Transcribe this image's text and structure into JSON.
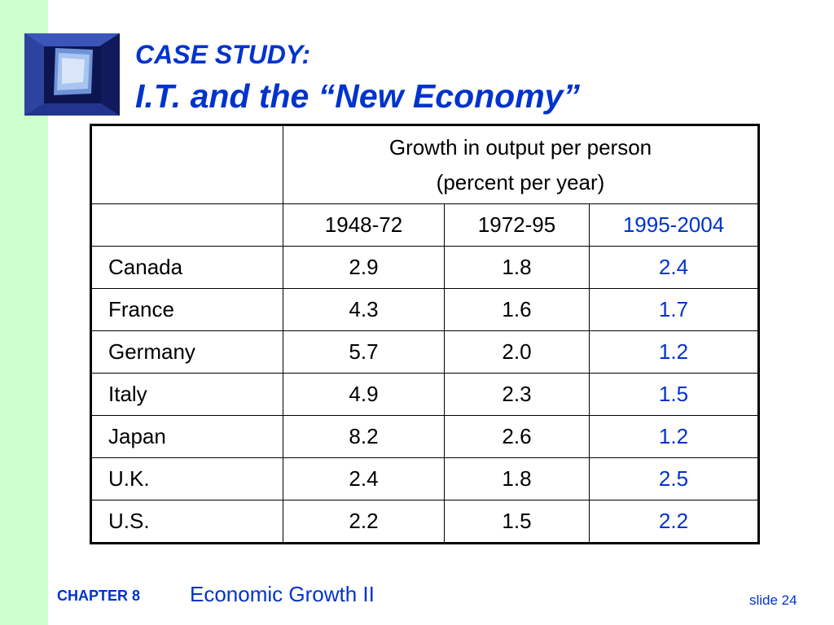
{
  "slide": {
    "title_line1": "CASE STUDY:",
    "title_line2": "I.T. and the “New Economy”",
    "logo_icon": "chapter-logo-icon"
  },
  "table": {
    "header_line1": "Growth in output per person",
    "header_line2": "(percent per year)",
    "periods": [
      "1948-72",
      "1972-95",
      "1995-2004"
    ],
    "rows": [
      {
        "country": "Canada",
        "values": [
          "2.9",
          "1.8",
          "2.4"
        ]
      },
      {
        "country": "France",
        "values": [
          "4.3",
          "1.6",
          "1.7"
        ]
      },
      {
        "country": "Germany",
        "values": [
          "5.7",
          "2.0",
          "1.2"
        ]
      },
      {
        "country": "Italy",
        "values": [
          "4.9",
          "2.3",
          "1.5"
        ]
      },
      {
        "country": "Japan",
        "values": [
          "8.2",
          "2.6",
          "1.2"
        ]
      },
      {
        "country": "U.K.",
        "values": [
          "2.4",
          "1.8",
          "2.5"
        ]
      },
      {
        "country": "U.S.",
        "values": [
          "2.2",
          "1.5",
          "2.2"
        ]
      }
    ]
  },
  "footer": {
    "chapter": "CHAPTER 8",
    "topic": "Economic Growth II",
    "slide_number": "slide 24"
  },
  "colors": {
    "accent_blue": "#0033cc",
    "side_band": "#ccffcc"
  }
}
